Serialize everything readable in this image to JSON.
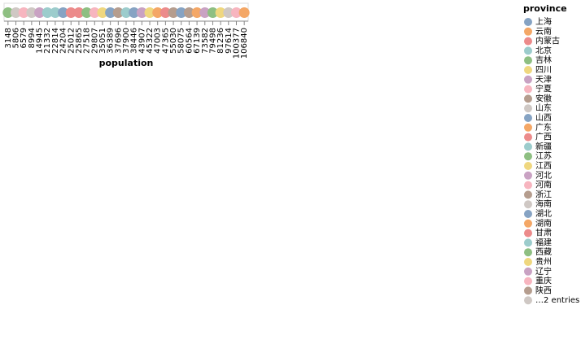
{
  "chart_data": {
    "type": "scatter",
    "x_field": "population",
    "xlabel": "population",
    "x_scale": "ordinal",
    "color_field": "province",
    "legend": {
      "title": "province",
      "position": "right",
      "overflow_label": "…2 entries"
    },
    "categories": [
      "3148",
      "5806",
      "6579",
      "8994",
      "14945",
      "21332",
      "22814",
      "24204",
      "25012",
      "25865",
      "27518",
      "29807",
      "35051",
      "36389",
      "37696",
      "37900",
      "38446",
      "43907",
      "45322",
      "47003",
      "47365",
      "55030",
      "58075",
      "60564",
      "67139",
      "73582",
      "79498",
      "81236",
      "97614",
      "100377",
      "106840"
    ],
    "points": [
      {
        "population": "3148",
        "color": "#8ebf82"
      },
      {
        "population": "5806",
        "color": "#cfc8c4"
      },
      {
        "population": "6579",
        "color": "#f7b5bf"
      },
      {
        "population": "8994",
        "color": "#cfc8c4"
      },
      {
        "population": "14945",
        "color": "#c9a2c3"
      },
      {
        "population": "21332",
        "color": "#9ccccc"
      },
      {
        "population": "22814",
        "color": "#9ccccc"
      },
      {
        "population": "24204",
        "color": "#86a3c3"
      },
      {
        "population": "25012",
        "color": "#ec8b8b"
      },
      {
        "population": "25865",
        "color": "#ec8b8b"
      },
      {
        "population": "27518",
        "color": "#8ebf82"
      },
      {
        "population": "29807",
        "color": "#f7b5bf"
      },
      {
        "population": "35051",
        "color": "#efd77f"
      },
      {
        "population": "36389",
        "color": "#86a3c3"
      },
      {
        "population": "37696",
        "color": "#b59d8e"
      },
      {
        "population": "37900",
        "color": "#9ccccc"
      },
      {
        "population": "38446",
        "color": "#86a3c3"
      },
      {
        "population": "43907",
        "color": "#c9a2c3"
      },
      {
        "population": "45322",
        "color": "#efd77f"
      },
      {
        "population": "47003",
        "color": "#f4a766"
      },
      {
        "population": "47365",
        "color": "#ec8b8b"
      },
      {
        "population": "55030",
        "color": "#b59d8e"
      },
      {
        "population": "58075",
        "color": "#86a3c3"
      },
      {
        "population": "60564",
        "color": "#b59d8e"
      },
      {
        "population": "67139",
        "color": "#f4a766"
      },
      {
        "population": "73582",
        "color": "#c9a2c3"
      },
      {
        "population": "79498",
        "color": "#8ebf82"
      },
      {
        "population": "81236",
        "color": "#efd77f"
      },
      {
        "population": "97614",
        "color": "#cfc8c4"
      },
      {
        "population": "100377",
        "color": "#f7b5bf"
      },
      {
        "population": "106840",
        "color": "#f4a766"
      }
    ],
    "legend_entries": [
      {
        "label": "上海",
        "color": "#86a3c3"
      },
      {
        "label": "云南",
        "color": "#f4a766"
      },
      {
        "label": "内蒙古",
        "color": "#ec8b8b"
      },
      {
        "label": "北京",
        "color": "#9ccccc"
      },
      {
        "label": "吉林",
        "color": "#8ebf82"
      },
      {
        "label": "四川",
        "color": "#efd77f"
      },
      {
        "label": "天津",
        "color": "#c9a2c3"
      },
      {
        "label": "宁夏",
        "color": "#f7b5bf"
      },
      {
        "label": "安徽",
        "color": "#b59d8e"
      },
      {
        "label": "山东",
        "color": "#cfc8c4"
      },
      {
        "label": "山西",
        "color": "#86a3c3"
      },
      {
        "label": "广东",
        "color": "#f4a766"
      },
      {
        "label": "广西",
        "color": "#ec8b8b"
      },
      {
        "label": "新疆",
        "color": "#9ccccc"
      },
      {
        "label": "江苏",
        "color": "#8ebf82"
      },
      {
        "label": "江西",
        "color": "#efd77f"
      },
      {
        "label": "河北",
        "color": "#c9a2c3"
      },
      {
        "label": "河南",
        "color": "#f7b5bf"
      },
      {
        "label": "浙江",
        "color": "#b59d8e"
      },
      {
        "label": "海南",
        "color": "#cfc8c4"
      },
      {
        "label": "湖北",
        "color": "#86a3c3"
      },
      {
        "label": "湖南",
        "color": "#f4a766"
      },
      {
        "label": "甘肃",
        "color": "#ec8b8b"
      },
      {
        "label": "福建",
        "color": "#9ccccc"
      },
      {
        "label": "西藏",
        "color": "#8ebf82"
      },
      {
        "label": "贵州",
        "color": "#efd77f"
      },
      {
        "label": "辽宁",
        "color": "#c9a2c3"
      },
      {
        "label": "重庆",
        "color": "#f7b5bf"
      },
      {
        "label": "陕西",
        "color": "#b59d8e"
      },
      {
        "label": "…2 entries",
        "color": "#cfc8c4"
      }
    ],
    "axis_line_color": "#888888",
    "grid": false
  }
}
